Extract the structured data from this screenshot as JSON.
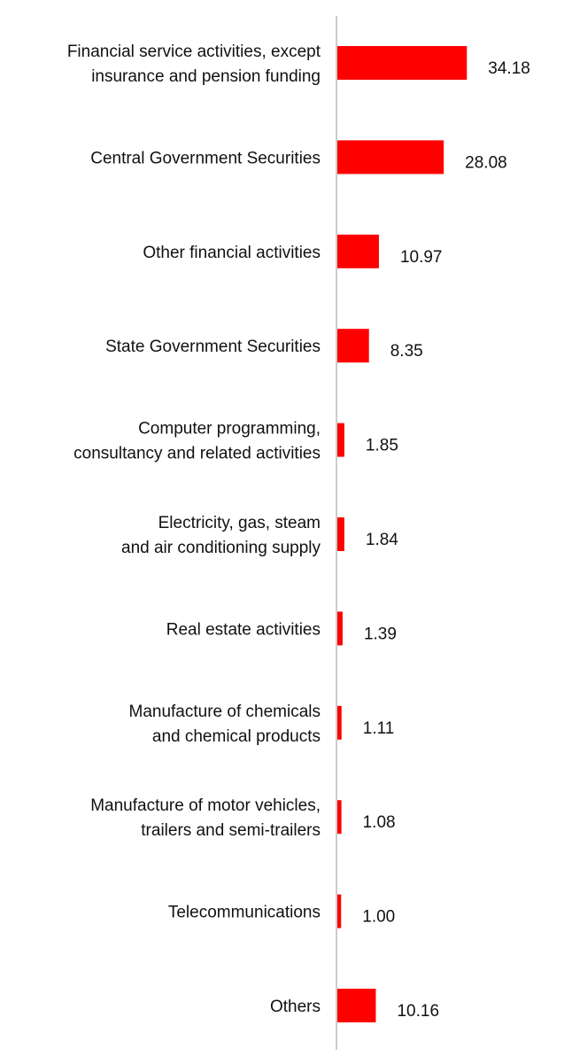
{
  "chart_data": {
    "type": "bar",
    "orientation": "horizontal",
    "title": "",
    "xlabel": "",
    "ylabel": "",
    "categories": [
      [
        "Financial service activities, except",
        "insurance and pension funding"
      ],
      [
        "Central Government Securities"
      ],
      [
        "Other financial activities"
      ],
      [
        "State Government Securities"
      ],
      [
        "Computer programming,",
        "consultancy and related activities"
      ],
      [
        "Electricity, gas, steam",
        "and air conditioning supply"
      ],
      [
        "Real estate activities"
      ],
      [
        "Manufacture of chemicals",
        "and chemical products"
      ],
      [
        "Manufacture of motor vehicles,",
        "trailers and semi-trailers"
      ],
      [
        "Telecommunications"
      ],
      [
        "Others"
      ]
    ],
    "values": [
      34.18,
      28.08,
      10.97,
      8.35,
      1.85,
      1.84,
      1.39,
      1.11,
      1.08,
      1.0,
      10.16
    ],
    "value_labels": [
      "34.18",
      "28.08",
      "10.97",
      "8.35",
      "1.85",
      "1.84",
      "1.39",
      "1.11",
      "1.08",
      "1.00",
      "10.16"
    ],
    "xlim": [
      0,
      40
    ],
    "grid": false,
    "legend": "none",
    "colors": {
      "bar": "#ff0000",
      "axis": "#cccccc",
      "text": "#111111"
    }
  }
}
